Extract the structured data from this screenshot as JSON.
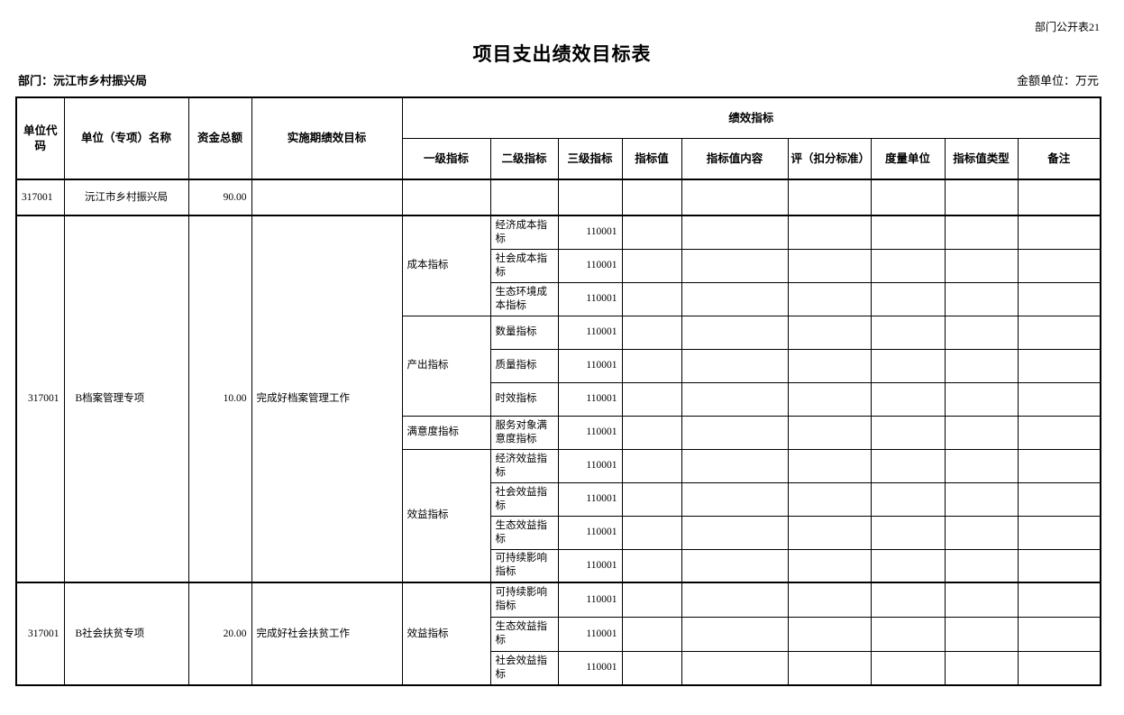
{
  "page": {
    "corner_note": "部门公开表21",
    "title": "项目支出绩效目标表",
    "department_label": "部门：沅江市乡村振兴局",
    "amount_unit_label": "金额单位：万元"
  },
  "table": {
    "header_rows": [
      {
        "cls": "hr-a",
        "cells": [
          {
            "t": "单位代码",
            "rs": 2
          },
          {
            "t": "单位（专项）名称",
            "rs": 2
          },
          {
            "t": "资金总额",
            "rs": 2
          },
          {
            "t": "实施期绩效目标",
            "rs": 2
          },
          {
            "t": "绩效指标",
            "cs": 9,
            "n": "header-perf-indicators-group"
          }
        ]
      },
      {
        "cls": "hr-b",
        "cells": [
          {
            "t": "一级指标"
          },
          {
            "t": "二级指标"
          },
          {
            "t": "三级指标"
          },
          {
            "t": "指标值"
          },
          {
            "t": "指标值内容"
          },
          {
            "t": "评（扣分标准）"
          },
          {
            "t": "度量单位"
          },
          {
            "t": "指标值类型"
          },
          {
            "t": "备注"
          }
        ]
      }
    ],
    "body_rows": [
      {
        "cls": "h40",
        "cells": [
          {
            "t": "317001",
            "al": "l"
          },
          {
            "t": "沅江市乡村振兴局",
            "al": "c"
          },
          {
            "t": "90.00",
            "al": "r"
          },
          {
            "t": ""
          },
          {
            "t": ""
          },
          {
            "t": ""
          },
          {
            "t": ""
          },
          {
            "t": ""
          },
          {
            "t": ""
          },
          {
            "t": ""
          },
          {
            "t": ""
          },
          {
            "t": ""
          },
          {
            "t": ""
          }
        ]
      },
      {
        "cls": "h37 grp",
        "cells": [
          {
            "t": "317001",
            "rs": 11,
            "al": "r"
          },
          {
            "t": "B档案管理专项",
            "rs": 11,
            "al": "li"
          },
          {
            "t": "10.00",
            "rs": 11,
            "al": "r"
          },
          {
            "t": "完成好档案管理工作",
            "rs": 11,
            "al": "l"
          },
          {
            "t": "成本指标",
            "rs": 3,
            "al": "l"
          },
          {
            "t": "经济成本指标",
            "al": "l"
          },
          {
            "t": "110001",
            "al": "r"
          },
          {
            "t": ""
          },
          {
            "t": ""
          },
          {
            "t": ""
          },
          {
            "t": ""
          },
          {
            "t": ""
          },
          {
            "t": ""
          }
        ]
      },
      {
        "cls": "h37",
        "cells": [
          {
            "t": "社会成本指标",
            "al": "l"
          },
          {
            "t": "110001",
            "al": "r"
          },
          {
            "t": ""
          },
          {
            "t": ""
          },
          {
            "t": ""
          },
          {
            "t": ""
          },
          {
            "t": ""
          },
          {
            "t": ""
          }
        ]
      },
      {
        "cls": "h37",
        "cells": [
          {
            "t": "生态环境成本指标",
            "al": "l"
          },
          {
            "t": "110001",
            "al": "r"
          },
          {
            "t": ""
          },
          {
            "t": ""
          },
          {
            "t": ""
          },
          {
            "t": ""
          },
          {
            "t": ""
          },
          {
            "t": ""
          }
        ]
      },
      {
        "cls": "h37",
        "cells": [
          {
            "t": "产出指标",
            "rs": 3,
            "al": "l"
          },
          {
            "t": "数量指标",
            "al": "l"
          },
          {
            "t": "110001",
            "al": "r"
          },
          {
            "t": ""
          },
          {
            "t": ""
          },
          {
            "t": ""
          },
          {
            "t": ""
          },
          {
            "t": ""
          },
          {
            "t": ""
          }
        ]
      },
      {
        "cls": "h37",
        "cells": [
          {
            "t": "质量指标",
            "al": "l"
          },
          {
            "t": "110001",
            "al": "r"
          },
          {
            "t": ""
          },
          {
            "t": ""
          },
          {
            "t": ""
          },
          {
            "t": ""
          },
          {
            "t": ""
          },
          {
            "t": ""
          }
        ]
      },
      {
        "cls": "h37",
        "cells": [
          {
            "t": "时效指标",
            "al": "l"
          },
          {
            "t": "110001",
            "al": "r"
          },
          {
            "t": ""
          },
          {
            "t": ""
          },
          {
            "t": ""
          },
          {
            "t": ""
          },
          {
            "t": ""
          },
          {
            "t": ""
          }
        ]
      },
      {
        "cls": "h37",
        "cells": [
          {
            "t": "满意度指标",
            "al": "l"
          },
          {
            "t": "服务对象满意度指标",
            "al": "l"
          },
          {
            "t": "110001",
            "al": "r"
          },
          {
            "t": ""
          },
          {
            "t": ""
          },
          {
            "t": ""
          },
          {
            "t": ""
          },
          {
            "t": ""
          },
          {
            "t": ""
          }
        ]
      },
      {
        "cls": "h37",
        "cells": [
          {
            "t": "效益指标",
            "rs": 4,
            "al": "l"
          },
          {
            "t": "经济效益指标",
            "al": "l"
          },
          {
            "t": "110001",
            "al": "r"
          },
          {
            "t": ""
          },
          {
            "t": ""
          },
          {
            "t": ""
          },
          {
            "t": ""
          },
          {
            "t": ""
          },
          {
            "t": ""
          }
        ]
      },
      {
        "cls": "h37",
        "cells": [
          {
            "t": "社会效益指标",
            "al": "l"
          },
          {
            "t": "110001",
            "al": "r"
          },
          {
            "t": ""
          },
          {
            "t": ""
          },
          {
            "t": ""
          },
          {
            "t": ""
          },
          {
            "t": ""
          },
          {
            "t": ""
          }
        ]
      },
      {
        "cls": "h37",
        "cells": [
          {
            "t": "生态效益指标",
            "al": "l"
          },
          {
            "t": "110001",
            "al": "r"
          },
          {
            "t": ""
          },
          {
            "t": ""
          },
          {
            "t": ""
          },
          {
            "t": ""
          },
          {
            "t": ""
          },
          {
            "t": ""
          }
        ]
      },
      {
        "cls": "h37",
        "cells": [
          {
            "t": "可持续影响指标",
            "al": "l"
          },
          {
            "t": "110001",
            "al": "r"
          },
          {
            "t": ""
          },
          {
            "t": ""
          },
          {
            "t": ""
          },
          {
            "t": ""
          },
          {
            "t": ""
          },
          {
            "t": ""
          }
        ]
      },
      {
        "cls": "h38 grp",
        "cells": [
          {
            "t": "317001",
            "rs": 3,
            "al": "r"
          },
          {
            "t": "B社会扶贫专项",
            "rs": 3,
            "al": "li"
          },
          {
            "t": "20.00",
            "rs": 3,
            "al": "r"
          },
          {
            "t": "完成好社会扶贫工作",
            "rs": 3,
            "al": "l"
          },
          {
            "t": "效益指标",
            "rs": 3,
            "al": "l"
          },
          {
            "t": "可持续影响指标",
            "al": "l"
          },
          {
            "t": "110001",
            "al": "r"
          },
          {
            "t": ""
          },
          {
            "t": ""
          },
          {
            "t": ""
          },
          {
            "t": ""
          },
          {
            "t": ""
          },
          {
            "t": ""
          }
        ]
      },
      {
        "cls": "h38",
        "cells": [
          {
            "t": "生态效益指标",
            "al": "l"
          },
          {
            "t": "110001",
            "al": "r"
          },
          {
            "t": ""
          },
          {
            "t": ""
          },
          {
            "t": ""
          },
          {
            "t": ""
          },
          {
            "t": ""
          },
          {
            "t": ""
          }
        ]
      },
      {
        "cls": "h38",
        "cells": [
          {
            "t": "社会效益指标",
            "al": "l"
          },
          {
            "t": "110001",
            "al": "r"
          },
          {
            "t": ""
          },
          {
            "t": ""
          },
          {
            "t": ""
          },
          {
            "t": ""
          },
          {
            "t": ""
          },
          {
            "t": ""
          }
        ]
      }
    ]
  }
}
